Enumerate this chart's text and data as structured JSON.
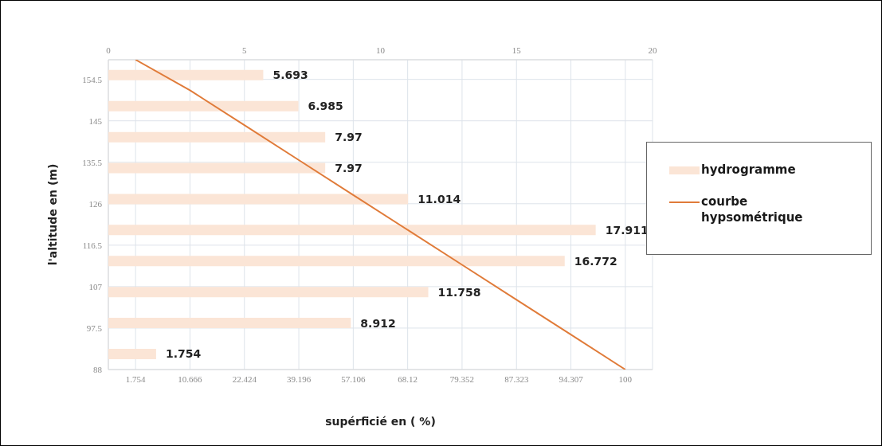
{
  "chart_data": [
    {
      "type": "bar",
      "orientation": "horizontal",
      "categories": [
        null,
        null,
        null,
        null,
        null,
        null,
        null,
        null,
        null,
        null
      ],
      "xlim": [
        0,
        20
      ],
      "xticks": [
        0,
        5,
        10,
        15,
        20
      ],
      "data_labels": true,
      "legend": "right",
      "series": [
        {
          "name": "hydrogramme",
          "color": "#fbe5d6",
          "values": [
            5.693,
            6.985,
            7.97,
            7.97,
            11.014,
            17.911,
            16.772,
            11.758,
            8.912,
            1.754
          ]
        }
      ]
    },
    {
      "type": "line",
      "xlabel": "supérficié en ( %)",
      "ylabel": "l'altitude en  (m)",
      "categories": [
        "1.754",
        "10.666",
        "22.424",
        "39.196",
        "57.106",
        "68.12",
        "79.352",
        "87.323",
        "94.307",
        "100"
      ],
      "ylim": [
        88,
        159
      ],
      "yticks": [
        88,
        97.5,
        107,
        116.5,
        126,
        135.5,
        145,
        154.5
      ],
      "grid": true,
      "legend": "right",
      "series": [
        {
          "name": "courbe hypsométrique",
          "color": "#e07b39",
          "values": [
            159,
            152,
            144,
            136,
            128,
            120,
            112,
            104,
            96,
            88
          ]
        }
      ]
    }
  ]
}
